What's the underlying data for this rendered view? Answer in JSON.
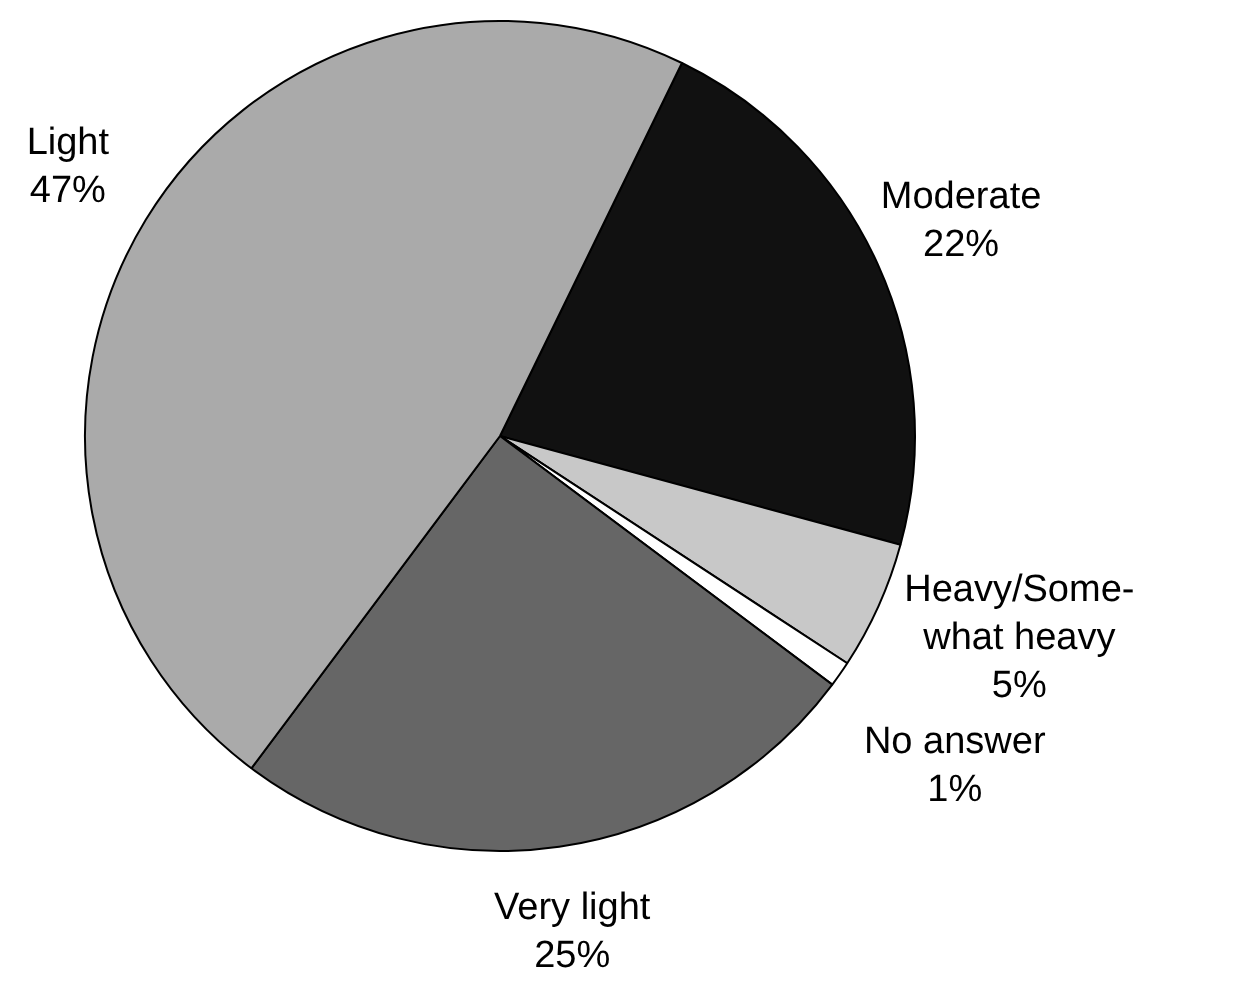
{
  "chart_data": {
    "type": "pie",
    "categories": [
      "Moderate",
      "Heavy/Some-what heavy",
      "No answer",
      "Very light",
      "Light"
    ],
    "values": [
      22,
      5,
      1,
      25,
      47
    ],
    "colors": [
      "#111111",
      "#c8c8c8",
      "#ffffff",
      "#666666",
      "#aaaaaa"
    ],
    "value_labels": [
      "22%",
      "5%",
      "1%",
      "25%",
      "47%"
    ],
    "legend": false
  }
}
